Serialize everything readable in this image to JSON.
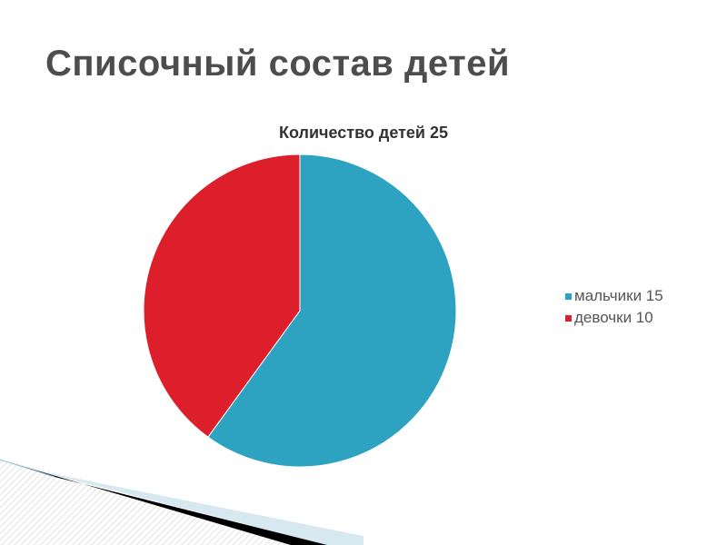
{
  "slide": {
    "title": "Списочный состав детей"
  },
  "chart_data": {
    "type": "pie",
    "title": "Количество детей 25",
    "categories": [
      "мальчики 15",
      "девочки 10"
    ],
    "values": [
      15,
      10
    ],
    "colors": [
      "#2ea3c1",
      "#dc1f2a"
    ],
    "start": "top, clockwise",
    "legend_position": "right"
  }
}
